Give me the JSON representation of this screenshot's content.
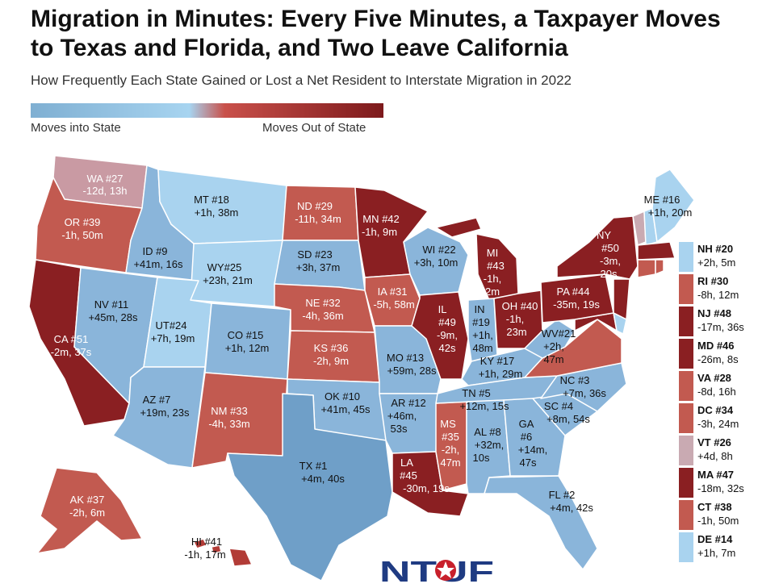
{
  "header": {
    "title": "Migration in Minutes: Every Five Minutes, a Taxpayer Moves to Texas and Florida, and Two Leave California",
    "subtitle": "How Frequently Each State Gained or Lost a Net Resident to Interstate Migration in 2022"
  },
  "legend": {
    "left_label": "Moves into State",
    "right_label": "Moves Out of State",
    "colors": [
      "#7fafd2",
      "#a7d4f0",
      "#c9504a",
      "#7d1a1c"
    ]
  },
  "colors": {
    "in_strong": "#6f9fc8",
    "in_mid": "#8ab5da",
    "in_light": "#a9d3ef",
    "out_light": "#c99aa3",
    "out_mid": "#c25a50",
    "out_strong": "#b23c37",
    "out_dark": "#8a1f22"
  },
  "states": {
    "WA": {
      "name": "WA #27",
      "value": "-12d, 13h"
    },
    "OR": {
      "name": "OR #39",
      "value": "-1h, 50m"
    },
    "CA": {
      "name": "CA #51",
      "value": "-2m, 37s"
    },
    "ID": {
      "name": "ID #9",
      "value": "+41m, 16s"
    },
    "NV": {
      "name": "NV #11",
      "value": "+45m, 28s"
    },
    "MT": {
      "name": "MT #18",
      "value": "+1h, 38m"
    },
    "WY": {
      "name": "WY#25",
      "value": "+23h, 21m"
    },
    "UT": {
      "name": "UT#24",
      "value": "+7h, 19m"
    },
    "AZ": {
      "name": "AZ #7",
      "value": "+19m, 23s"
    },
    "CO": {
      "name": "CO #15",
      "value": "+1h, 12m"
    },
    "NM": {
      "name": "NM #33",
      "value": "-4h, 33m"
    },
    "ND": {
      "name": "ND #29",
      "value": "-11h, 34m"
    },
    "SD": {
      "name": "SD #23",
      "value": "+3h, 37m"
    },
    "NE": {
      "name": "NE #32",
      "value": "-4h, 36m"
    },
    "KS": {
      "name": "KS #36",
      "value": "-2h, 9m"
    },
    "OK": {
      "name": "OK #10",
      "value": "+41m, 45s"
    },
    "TX": {
      "name": "TX #1",
      "value": "+4m, 40s"
    },
    "MN": {
      "name": "MN #42",
      "value": "-1h, 9m"
    },
    "IA": {
      "name": "IA #31",
      "value": "-5h, 58m"
    },
    "MO": {
      "name": "MO #13",
      "value": "+59m, 28s"
    },
    "AR": {
      "name": "AR #12",
      "value_line1": "+46m,",
      "value_line2": "53s"
    },
    "LA": {
      "name": "LA",
      "rank": "#45",
      "value": "-30m, 19s"
    },
    "WI": {
      "name": "WI #22",
      "value": "+3h, 10m"
    },
    "IL": {
      "name": "IL",
      "rank": "#49",
      "value_line1": "-9m,",
      "value_line2": "42s"
    },
    "MS": {
      "name": "MS",
      "rank": "#35",
      "value_line1": "-2h,",
      "value_line2": "47m"
    },
    "MI": {
      "name": "MI",
      "rank": "#43",
      "value_line1": "-1h,",
      "value_line2": "2m"
    },
    "IN": {
      "name": "IN",
      "rank": "#19",
      "value_line1": "+1h,",
      "value_line2": "48m"
    },
    "OH": {
      "name": "OH #40",
      "value_line1": "-1h,",
      "value_line2": "23m"
    },
    "KY": {
      "name": "KY #17",
      "value": "+1h, 29m"
    },
    "TN": {
      "name": "TN #5",
      "value": "+12m, 15s"
    },
    "AL": {
      "name": "AL #8",
      "value_line1": "+32m,",
      "value_line2": "10s"
    },
    "GA": {
      "name": "GA",
      "rank": "#6",
      "value_line1": "+14m,",
      "value_line2": "47s"
    },
    "FL": {
      "name": "FL #2",
      "value": "+4m, 42s"
    },
    "SC": {
      "name": "SC #4",
      "value": "+8m, 54s"
    },
    "NC": {
      "name": "NC #3",
      "value": "+7m, 36s"
    },
    "WV": {
      "name": "WV#21",
      "value_line1": "+2h,",
      "value_line2": "47m"
    },
    "PA": {
      "name": "PA #44",
      "value": "-35m, 19s"
    },
    "NY": {
      "name": "NY",
      "rank": "#50",
      "value_line1": "-3m,",
      "value_line2": "20s"
    },
    "ME": {
      "name": "ME #16",
      "value": "+1h, 20m"
    },
    "AK": {
      "name": "AK #37",
      "value": "-2h, 6m"
    },
    "HI": {
      "name": "HI #41",
      "value": "-1h, 17m"
    }
  },
  "side_list": [
    {
      "name": "NH #20",
      "value": "+2h, 5m",
      "color": "#a9d3ef"
    },
    {
      "name": "RI #30",
      "value": "-8h, 12m",
      "color": "#c25a50"
    },
    {
      "name": "NJ #48",
      "value": "-17m, 36s",
      "color": "#8a1f22"
    },
    {
      "name": "MD #46",
      "value": "-26m, 8s",
      "color": "#8a1f22"
    },
    {
      "name": "VA #28",
      "value": "-8d, 16h",
      "color": "#c25a50"
    },
    {
      "name": "DC #34",
      "value": "-3h, 24m",
      "color": "#c25a50"
    },
    {
      "name": "VT #26",
      "value": "+4d, 8h",
      "color": "#c9aab2"
    },
    {
      "name": "MA #47",
      "value": "-18m, 32s",
      "color": "#8a1f22"
    },
    {
      "name": "CT #38",
      "value": "-1h, 50m",
      "color": "#c25a50"
    },
    {
      "name": "DE #14",
      "value": "+1h, 7m",
      "color": "#a9d3ef"
    }
  ],
  "logo": {
    "text": "NTUF"
  }
}
